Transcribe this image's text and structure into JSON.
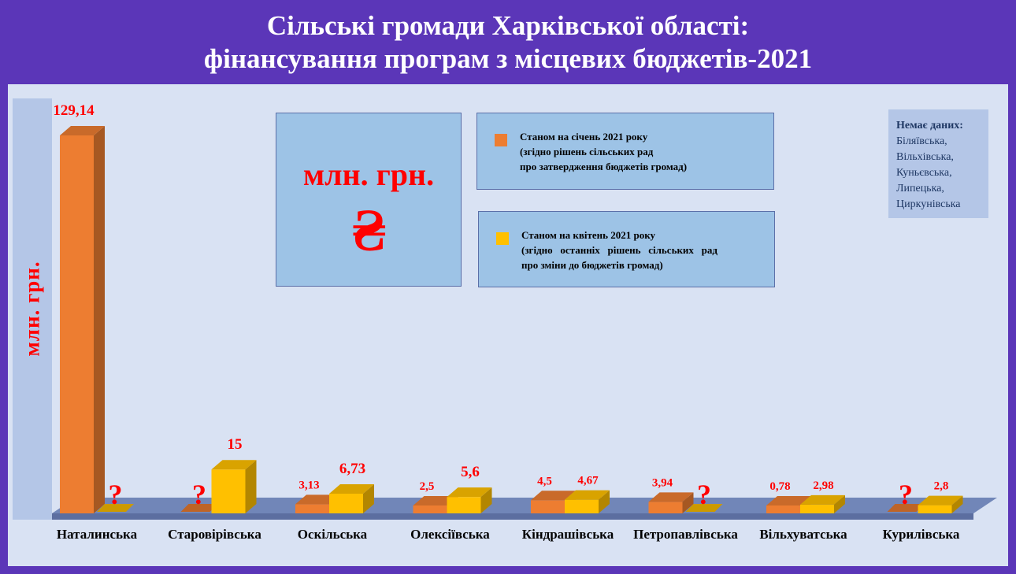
{
  "title": {
    "line1": "Сільські громади Харківської області:",
    "line2": "фінансування програм з місцевих бюджетів-2021"
  },
  "unit_box": {
    "text": "млн. грн.",
    "symbol": "₴"
  },
  "legend": [
    {
      "line1": "Станом на січень 2021 року",
      "line2": "(згідно рішень сільських рад",
      "line3": "про затвердження бюджетів громад)",
      "color": "#ed7d31"
    },
    {
      "line1": "Станом на квітень 2021 року",
      "line2": "(згідно   останніх   рішень   сільських   рад",
      "line3": "про зміни до бюджетів громад)",
      "color": "#ffc000"
    }
  ],
  "no_data": {
    "heading": "Немає даних:",
    "items": [
      "Біляївська,",
      "Вільхівська,",
      "Куньєвська,",
      "Липецька,",
      "Циркунівська"
    ]
  },
  "chart_data": {
    "type": "bar",
    "title": "Сільські громади Харківської області: фінансування програм з місцевих бюджетів-2021",
    "ylabel": "млн.  грн.",
    "xlabel": "",
    "categories": [
      "Наталинська",
      "Старовірівська",
      "Оскільська",
      "Олексіївська",
      "Кіндрашівська",
      "Петропавлівська",
      "Вільхуватська",
      "Курилівська"
    ],
    "series": [
      {
        "name": "Станом на січень 2021 року",
        "color": "#ed7d31",
        "values": [
          129.14,
          null,
          3.13,
          2.5,
          4.5,
          3.94,
          0.78,
          null
        ],
        "labels": [
          "129,14",
          "?",
          "3,13",
          "2,5",
          "4,5",
          "3,94",
          "0,78",
          "?"
        ]
      },
      {
        "name": "Станом на квітень 2021 року",
        "color": "#ffc000",
        "values": [
          null,
          15,
          6.73,
          5.6,
          4.67,
          null,
          2.98,
          2.8
        ],
        "labels": [
          "?",
          "15",
          "6,73",
          "5,6",
          "4,67",
          "?",
          "2,98",
          "2,8"
        ]
      }
    ],
    "ylim": [
      0,
      129.14
    ],
    "grid": false,
    "legend_position": "top-center"
  }
}
